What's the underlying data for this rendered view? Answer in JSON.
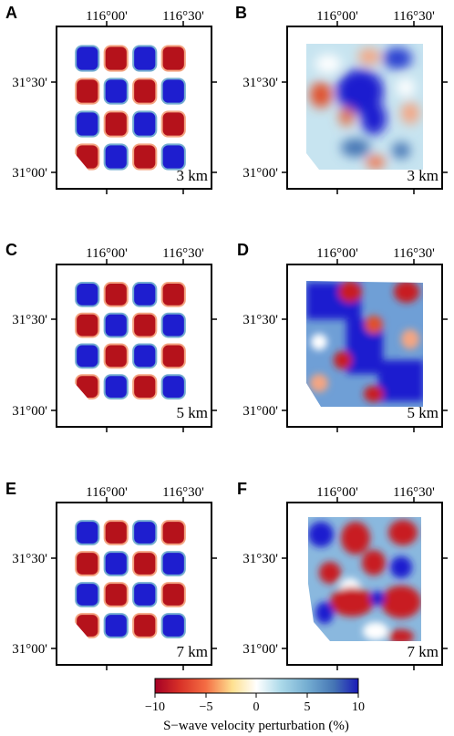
{
  "panels": [
    {
      "letter": "A",
      "depth_label": "3 km",
      "type": "checkerboard",
      "x_ticks": [
        "116°00'",
        "116°30'"
      ],
      "y_ticks": [
        "31°30'",
        "31°00'"
      ]
    },
    {
      "letter": "B",
      "depth_label": "3 km",
      "type": "recovered",
      "x_ticks": [
        "116°00'",
        "116°30'"
      ],
      "y_ticks": [
        "31°30'",
        "31°00'"
      ]
    },
    {
      "letter": "C",
      "depth_label": "5 km",
      "type": "checkerboard",
      "x_ticks": [
        "116°00'",
        "116°30'"
      ],
      "y_ticks": [
        "31°30'",
        "31°00'"
      ]
    },
    {
      "letter": "D",
      "depth_label": "5 km",
      "type": "recovered",
      "x_ticks": [
        "116°00'",
        "116°30'"
      ],
      "y_ticks": [
        "31°30'",
        "31°00'"
      ]
    },
    {
      "letter": "E",
      "depth_label": "7 km",
      "type": "checkerboard",
      "x_ticks": [
        "116°00'",
        "116°30'"
      ],
      "y_ticks": [
        "31°30'",
        "31°00'"
      ]
    },
    {
      "letter": "F",
      "depth_label": "7 km",
      "type": "recovered",
      "x_ticks": [
        "116°00'",
        "116°30'"
      ],
      "y_ticks": [
        "31°30'",
        "31°00'"
      ]
    }
  ],
  "colorbar": {
    "label": "S−wave velocity perturbation (%)",
    "ticks": [
      "−10",
      "−5",
      "0",
      "5",
      "10"
    ],
    "min": -10,
    "max": 10,
    "colors": [
      "#a50026",
      "#d73027",
      "#f46d43",
      "#fdae61",
      "#fee090",
      "#ffffff",
      "#e0f3f8",
      "#abd9e9",
      "#74add1",
      "#4575b4",
      "#1a1ab8"
    ]
  },
  "colors": {
    "slow": "#b5121b",
    "fast": "#1e1ecf",
    "frame": "#000000"
  }
}
